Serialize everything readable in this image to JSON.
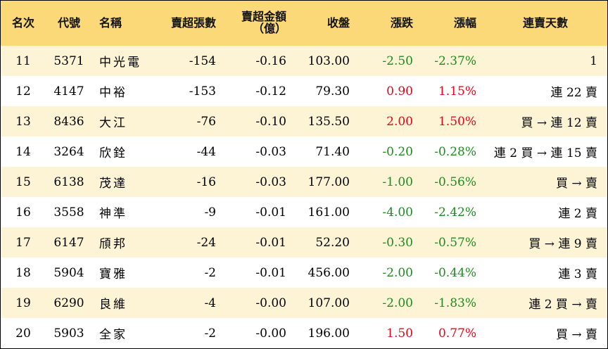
{
  "headers": {
    "rank": "名次",
    "code": "代號",
    "name": "名稱",
    "sell_lots": "賣超張數",
    "sell_amount_line1": "賣超金額",
    "sell_amount_line2": "（億）",
    "close": "收盤",
    "change": "漲跌",
    "change_pct": "漲幅",
    "streak": "連賣天數"
  },
  "colors": {
    "header_bg": "#fcd978",
    "row_alt_bg": "#fdf4d6",
    "up": "#e3061a",
    "down": "#1f8a1f"
  },
  "rows": [
    {
      "rank": "11",
      "code": "5371",
      "name": "中光電",
      "sell_lots": "-154",
      "sell_amount": "-0.16",
      "close": "103.00",
      "change": "-2.50",
      "change_pct": "-2.37%",
      "streak": "1"
    },
    {
      "rank": "12",
      "code": "4147",
      "name": "中裕",
      "sell_lots": "-153",
      "sell_amount": "-0.12",
      "close": "79.30",
      "change": "0.90",
      "change_pct": "1.15%",
      "streak": "連 22 賣"
    },
    {
      "rank": "13",
      "code": "8436",
      "name": "大江",
      "sell_lots": "-76",
      "sell_amount": "-0.10",
      "close": "135.50",
      "change": "2.00",
      "change_pct": "1.50%",
      "streak": "買 → 連 12 賣"
    },
    {
      "rank": "14",
      "code": "3264",
      "name": "欣銓",
      "sell_lots": "-44",
      "sell_amount": "-0.03",
      "close": "71.40",
      "change": "-0.20",
      "change_pct": "-0.28%",
      "streak": "連 2 買 → 連 15 賣"
    },
    {
      "rank": "15",
      "code": "6138",
      "name": "茂達",
      "sell_lots": "-16",
      "sell_amount": "-0.03",
      "close": "177.00",
      "change": "-1.00",
      "change_pct": "-0.56%",
      "streak": "買 → 賣"
    },
    {
      "rank": "16",
      "code": "3558",
      "name": "神準",
      "sell_lots": "-9",
      "sell_amount": "-0.01",
      "close": "161.00",
      "change": "-4.00",
      "change_pct": "-2.42%",
      "streak": "連 2 賣"
    },
    {
      "rank": "17",
      "code": "6147",
      "name": "頎邦",
      "sell_lots": "-24",
      "sell_amount": "-0.01",
      "close": "52.20",
      "change": "-0.30",
      "change_pct": "-0.57%",
      "streak": "買 → 連 9 賣"
    },
    {
      "rank": "18",
      "code": "5904",
      "name": "寶雅",
      "sell_lots": "-2",
      "sell_amount": "-0.01",
      "close": "456.00",
      "change": "-2.00",
      "change_pct": "-0.44%",
      "streak": "連 3 賣"
    },
    {
      "rank": "19",
      "code": "6290",
      "name": "良維",
      "sell_lots": "-4",
      "sell_amount": "-0.00",
      "close": "107.00",
      "change": "-2.00",
      "change_pct": "-1.83%",
      "streak": "連 2 買 → 賣"
    },
    {
      "rank": "20",
      "code": "5903",
      "name": "全家",
      "sell_lots": "-2",
      "sell_amount": "-0.00",
      "close": "196.00",
      "change": "1.50",
      "change_pct": "0.77%",
      "streak": "買 → 賣"
    }
  ]
}
